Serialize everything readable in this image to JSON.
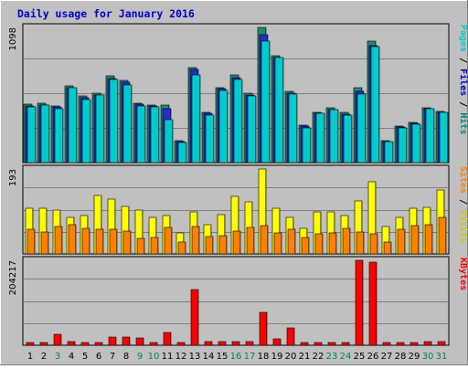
{
  "chart_data": {
    "type": "bar",
    "title": "Daily usage for January 2016",
    "categories": [
      "1",
      "2",
      "3",
      "4",
      "5",
      "6",
      "7",
      "8",
      "9",
      "10",
      "11",
      "12",
      "13",
      "14",
      "15",
      "16",
      "17",
      "18",
      "19",
      "20",
      "21",
      "22",
      "23",
      "24",
      "25",
      "26",
      "27",
      "28",
      "29",
      "30",
      "31"
    ],
    "weekend_days": [
      "3",
      "9",
      "10",
      "16",
      "17",
      "23",
      "24",
      "30",
      "31"
    ],
    "panels": [
      {
        "id": "hits",
        "max_label": "1098",
        "ymax": 1098,
        "axis_labels": [
          {
            "text": "Hits",
            "color": "#008080"
          },
          {
            "text": "Files",
            "color": "#0000CC"
          },
          {
            "text": "Pages",
            "color": "#00CCCC"
          }
        ],
        "series": [
          {
            "name": "Hits",
            "color": "#1E8A6E",
            "values": [
              472,
              485,
              458,
              623,
              544,
              561,
              703,
              668,
              485,
              469,
              468,
              179,
              773,
              411,
              611,
              710,
              565,
              1098,
              867,
              578,
              302,
              409,
              442,
              406,
              611,
              985,
              179,
              295,
              328,
              442,
              419
            ]
          },
          {
            "name": "Files",
            "color": "#2A2ACC",
            "values": [
              460,
              470,
              452,
              608,
              530,
              548,
              686,
              651,
              475,
              460,
              436,
              172,
              757,
              402,
              598,
              693,
              552,
              1035,
              852,
              565,
              298,
              398,
              432,
              396,
              581,
              950,
              173,
              288,
              320,
              436,
              410
            ]
          },
          {
            "name": "Pages",
            "color": "#00CCCC",
            "values": [
              452,
              470,
              436,
              608,
              512,
              548,
              673,
              633,
              460,
              452,
              347,
              164,
              714,
              386,
              584,
              675,
              540,
              984,
              852,
              556,
              282,
              398,
              432,
              386,
              558,
              939,
              173,
              282,
              311,
              436,
              410
            ]
          }
        ]
      },
      {
        "id": "visits",
        "max_label": "193",
        "ymax": 193,
        "axis_labels": [
          {
            "text": "Visits",
            "color": "#CCCC00"
          },
          {
            "text": "Sites",
            "color": "#FF8000"
          }
        ],
        "series": [
          {
            "name": "Visits",
            "color": "#FFFF00",
            "values": [
              104,
              104,
              99,
              83,
              87,
              132,
              125,
              108,
              100,
              83,
              87,
              48,
              96,
              67,
              90,
              130,
              119,
              193,
              104,
              84,
              58,
              95,
              95,
              87,
              120,
              164,
              62,
              83,
              104,
              106,
              146
            ]
          },
          {
            "name": "Sites",
            "color": "#FF8000",
            "values": [
              55,
              50,
              62,
              66,
              58,
              57,
              55,
              51,
              35,
              37,
              60,
              28,
              62,
              39,
              42,
              52,
              60,
              65,
              47,
              55,
              38,
              45,
              48,
              58,
              49,
              46,
              26,
              56,
              64,
              67,
              84
            ]
          }
        ]
      },
      {
        "id": "kbytes",
        "max_label": "204217",
        "ymax": 204217,
        "axis_labels": [
          {
            "text": "KBytes",
            "color": "#FF0000"
          }
        ],
        "series": [
          {
            "name": "KBytes",
            "color": "#FF0000",
            "values": [
              7500,
              7500,
              26000,
              8000,
              7500,
              6500,
              19500,
              20000,
              18000,
              6500,
              30000,
              6500,
              135000,
              8000,
              8500,
              8000,
              9000,
              78000,
              15000,
              42000,
              6500,
              7500,
              6500,
              7000,
              204217,
              200000,
              7000,
              6500,
              7500,
              8000,
              8000
            ]
          }
        ]
      }
    ]
  }
}
